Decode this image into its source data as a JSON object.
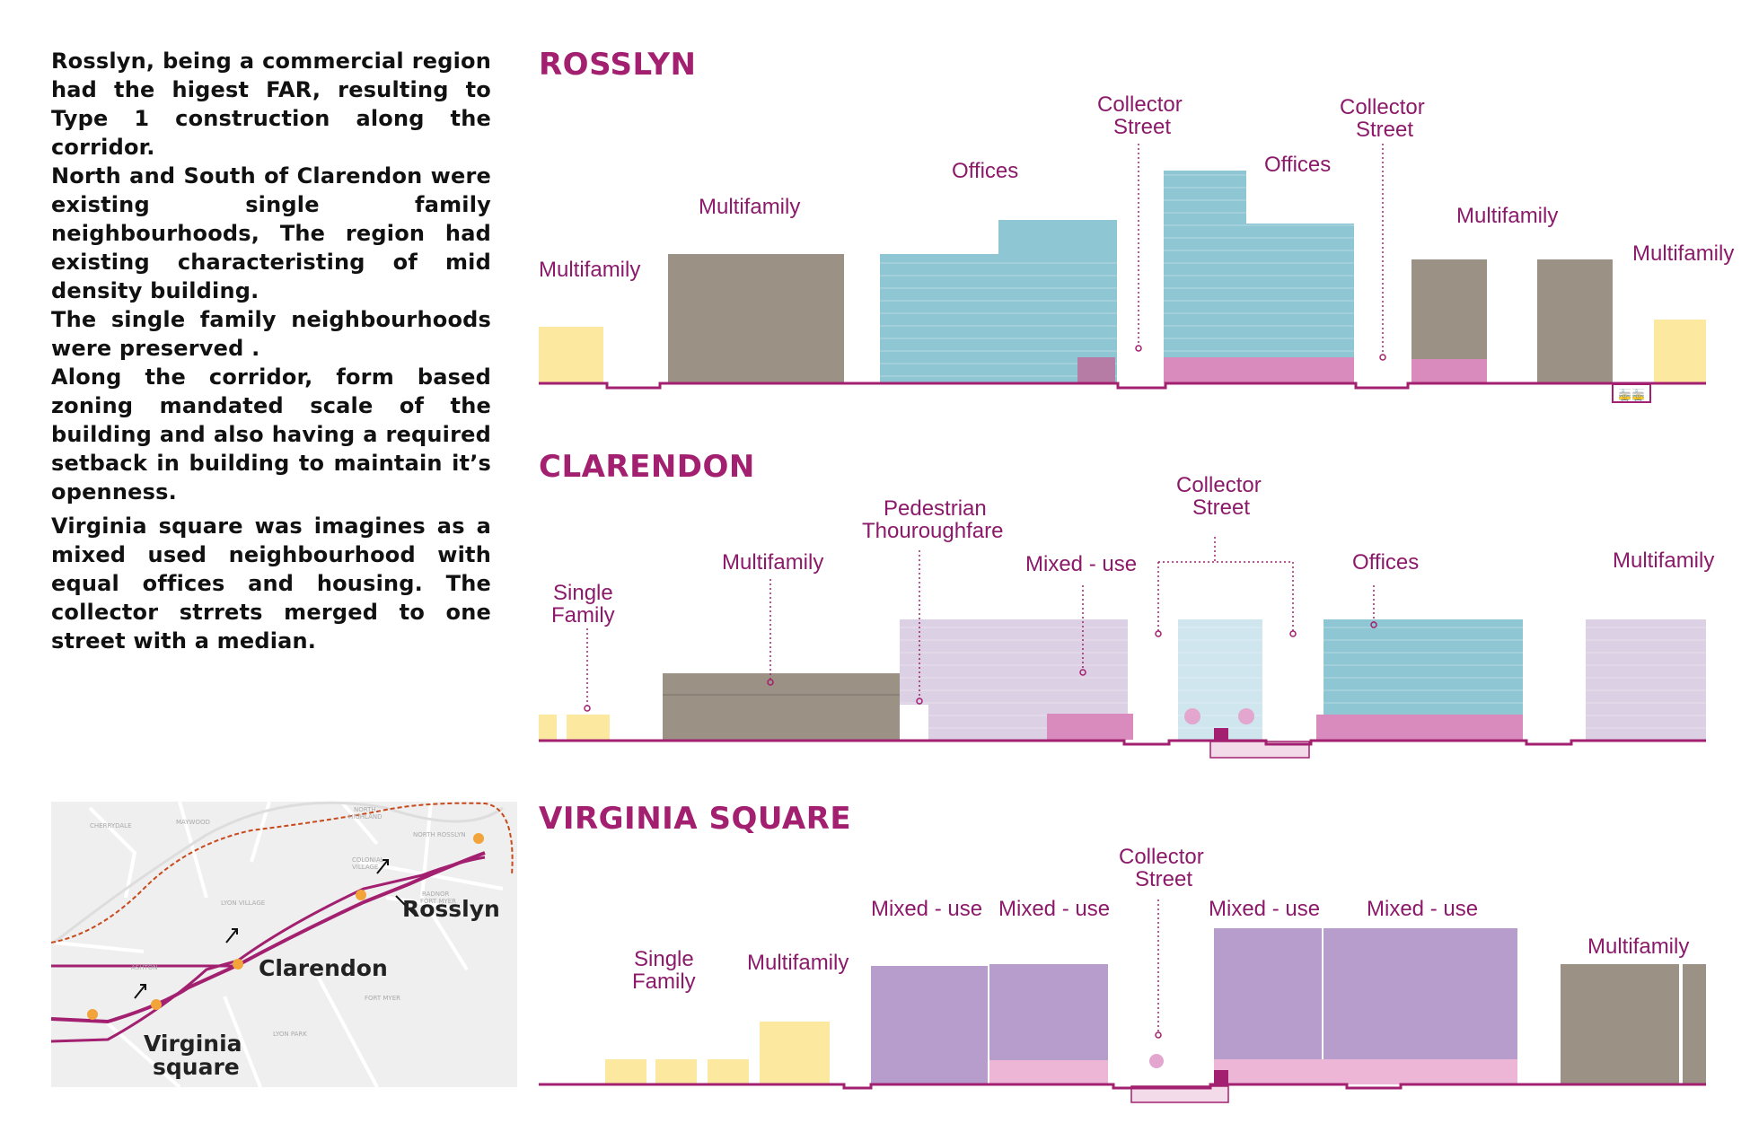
{
  "text": {
    "p1": "Rosslyn, being a commercial region had the higest FAR, resulting to Type 1 construction along the corridor.",
    "p2a": "North and South of Clarendon were existing single family neighbourhoods, The region had existing characteristing of mid density building.",
    "p2b": "The single family neighbourhoods were preserved .",
    "p2c": "Along the corridor, form based zoning mandated scale of the building and also having a required setback in building to maintain it’s openness.",
    "p3": "Virginia square was imagines as a mixed used neighbourhood with equal offices and housing. The collector strrets merged to one street with a median."
  },
  "sections": {
    "rosslyn": {
      "title": "ROSSLYN",
      "labels": {
        "multifamily_1": "Multifamily",
        "multifamily_2": "Multifamily",
        "offices_1": "Offices",
        "collector_1a": "Collector",
        "collector_1b": "Street",
        "offices_2": "Offices",
        "collector_2a": "Collector",
        "collector_2b": "Street",
        "multifamily_3": "Multifamily",
        "multifamily_4": "Multifamily"
      }
    },
    "clarendon": {
      "title": "CLARENDON",
      "labels": {
        "single_a": "Single",
        "single_b": "Family",
        "multifamily_1": "Multifamily",
        "pedestrian_a": "Pedestrian",
        "pedestrian_b": "Thouroughfare",
        "mixed_use": "Mixed - use",
        "collector_a": "Collector",
        "collector_b": "Street",
        "offices": "Offices",
        "multifamily_2": "Multifamily"
      }
    },
    "virginia": {
      "title": "VIRGINIA SQUARE",
      "labels": {
        "single_a": "Single",
        "single_b": "Family",
        "multifamily_1": "Multifamily",
        "mixed_1": "Mixed - use",
        "mixed_2": "Mixed - use",
        "collector_a": "Collector",
        "collector_b": "Street",
        "mixed_3": "Mixed - use",
        "mixed_4": "Mixed - use",
        "multifamily_2": "Multifamily"
      }
    }
  },
  "map": {
    "rosslyn": "Rosslyn",
    "clarendon": "Clarendon",
    "virginia_a": "Virginia",
    "virginia_b": "square",
    "minor": {
      "cherrydale": "CHERRYDALE",
      "maywood": "MAYWOOD",
      "north_highland_a": "NORTH",
      "north_highland_b": "HIGHLAND",
      "north_rosslyn": "NORTH ROSSLYN",
      "colonial_a": "COLONIAL",
      "colonial_b": "VILLAGE",
      "lyon_village": "LYON VILLAGE",
      "radnor_a": "RADNOR",
      "radnor_b": "FORT MYER",
      "fort_myer": "FORT MYER",
      "lyon_park": "LYON PARK",
      "ashton": "ASHTON"
    }
  },
  "colors": {
    "magenta": "#a2206f",
    "label": "#8c1a6a",
    "yellow": "#fde8a0",
    "brown": "#9b9285",
    "teal": "#8fc6d3",
    "pink": "#d98bbd",
    "lavender": "#dcd0e4",
    "purple": "#b79dcb",
    "lightpink": "#eeb6d6"
  }
}
